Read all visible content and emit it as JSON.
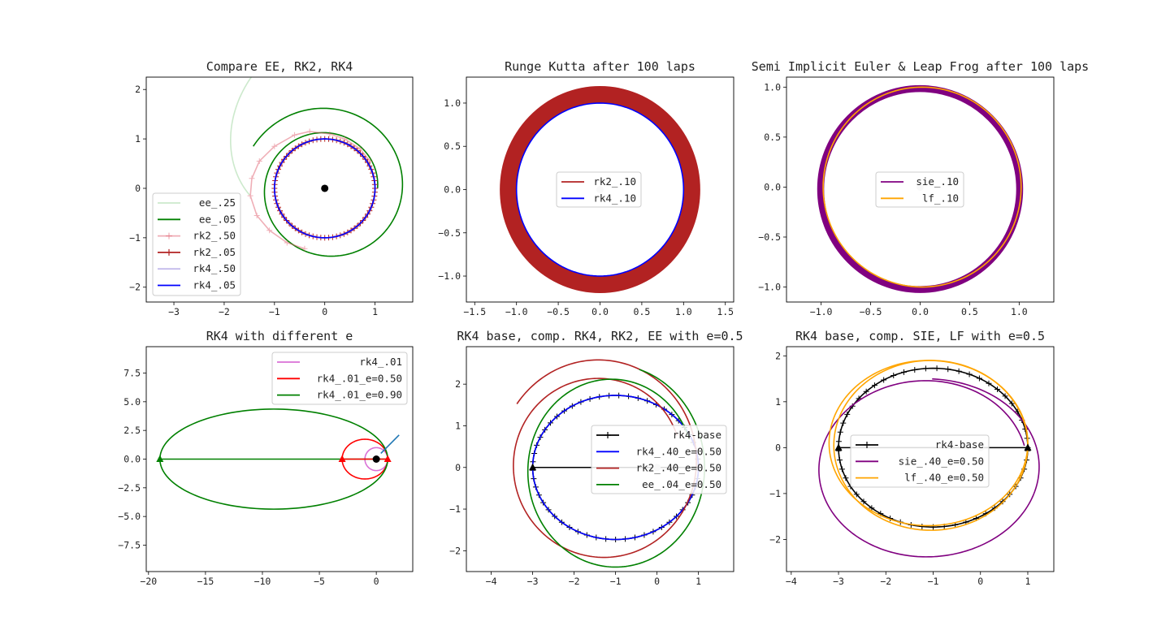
{
  "chart_data": [
    {
      "type": "line",
      "title": "Compare EE, RK2, RK4",
      "xlim": [
        -3.55,
        1.75
      ],
      "ylim": [
        -2.3,
        2.25
      ],
      "xticks": [
        -3,
        -2,
        -1,
        0,
        1
      ],
      "yticks": [
        -2,
        -1,
        0,
        1,
        2
      ],
      "legend_placement": "lower-left",
      "series": [
        {
          "name": "ee_.25",
          "color": "#8fcf8f",
          "alpha": 0.45,
          "marker": "none",
          "kind": "spiral",
          "cx": 0.05,
          "cy": 0,
          "r0": 1.55,
          "r1": 3.45,
          "a0": 185,
          "a1": 85
        },
        {
          "name": "ee_.05",
          "color": "#008000",
          "marker": "none",
          "kind": "spiral",
          "cx": 0.05,
          "cy": 0,
          "r0": 1.0,
          "r1": 1.7,
          "a0": 0,
          "a1": 150,
          "turns": 1
        },
        {
          "name": "rk2_.50",
          "color": "#e06070",
          "alpha": 0.5,
          "marker": "+",
          "kind": "polyline",
          "points": [
            [
              -0.4,
              -1.22
            ],
            [
              -0.75,
              -1.1
            ],
            [
              -1.1,
              -0.85
            ],
            [
              -1.35,
              -0.55
            ],
            [
              -1.48,
              -0.15
            ],
            [
              -1.45,
              0.2
            ],
            [
              -1.3,
              0.55
            ],
            [
              -1.0,
              0.85
            ],
            [
              -0.6,
              1.08
            ],
            [
              -0.3,
              1.15
            ],
            [
              0.1,
              1.1
            ],
            [
              0.4,
              1.0
            ],
            [
              0.7,
              0.8
            ],
            [
              0.9,
              0.55
            ]
          ]
        },
        {
          "name": "rk2_.05",
          "color": "#b22222",
          "marker": "+",
          "kind": "circle",
          "cx": 0,
          "cy": 0,
          "r": 1.0
        },
        {
          "name": "rk4_.50",
          "color": "#9c8fe0",
          "alpha": 0.6,
          "marker": "none",
          "kind": "circle",
          "cx": 0,
          "cy": 0,
          "r": 1.0
        },
        {
          "name": "rk4_.05",
          "color": "#0000ff",
          "marker": "none",
          "kind": "circle",
          "cx": 0,
          "cy": 0,
          "r": 1.0
        }
      ],
      "center_point": [
        0,
        0
      ]
    },
    {
      "type": "line",
      "title": "Runge Kutta after 100 laps",
      "xlim": [
        -1.6,
        1.6
      ],
      "ylim": [
        -1.3,
        1.3
      ],
      "xticks": [
        -1.5,
        -1.0,
        -0.5,
        0.0,
        0.5,
        1.0,
        1.5
      ],
      "yticks": [
        -1.0,
        -0.5,
        0.0,
        0.5,
        1.0
      ],
      "legend_placement": "center",
      "series": [
        {
          "name": "rk2_.10",
          "color": "#b22222",
          "kind": "band",
          "r_in": 1.0,
          "r_out": 1.2
        },
        {
          "name": "rk4_.10",
          "color": "#0000ff",
          "kind": "circle",
          "cx": 0,
          "cy": 0,
          "r": 1.0
        }
      ],
      "center_point": [
        0,
        0
      ]
    },
    {
      "type": "line",
      "title": "Semi Implicit Euler & Leap Frog after 100 laps",
      "xlim": [
        -1.35,
        1.35
      ],
      "ylim": [
        -1.15,
        1.1
      ],
      "xticks": [
        -1.0,
        -0.5,
        0.0,
        0.5,
        1.0
      ],
      "yticks": [
        -1.0,
        -0.5,
        0.0,
        0.5,
        1.0
      ],
      "legend_placement": "center",
      "series": [
        {
          "name": "sie_.10",
          "color": "#800080",
          "kind": "band",
          "r_in": 0.97,
          "r_out": 1.04,
          "cy": -0.02
        },
        {
          "name": "lf_.10",
          "color": "#ffa500",
          "kind": "circle",
          "cx": 0.02,
          "cy": 0,
          "r": 1.0
        }
      ],
      "center_point": [
        0,
        0
      ]
    },
    {
      "type": "line",
      "title": "RK4 with different e",
      "xlim": [
        -20.2,
        3.2
      ],
      "ylim": [
        -9.8,
        9.8
      ],
      "xticks": [
        -20,
        -15,
        -10,
        -5,
        0
      ],
      "yticks": [
        -7.5,
        -5.0,
        -2.5,
        0.0,
        2.5,
        5.0,
        7.5
      ],
      "legend_placement": "upper-right",
      "series": [
        {
          "name": "rk4_.01",
          "color": "#da70d6",
          "kind": "ellipse",
          "cx": 0,
          "cy": 0,
          "rx": 1.0,
          "ry": 1.0
        },
        {
          "name": "rk4_.01_e=0.50",
          "color": "#ff0000",
          "kind": "ellipse",
          "cx": -1.0,
          "cy": 0,
          "rx": 2.0,
          "ry": 1.73
        },
        {
          "name": "rk4_.01_e=0.90",
          "color": "#008000",
          "kind": "ellipse",
          "cx": -9.0,
          "cy": 0,
          "rx": 10.0,
          "ry": 4.36
        }
      ],
      "extra_lines": [
        {
          "color": "#008000",
          "points": [
            [
              -19,
              0
            ],
            [
              1,
              0
            ]
          ]
        },
        {
          "color": "#ff0000",
          "points": [
            [
              -3,
              0
            ],
            [
              1,
              0
            ]
          ]
        },
        {
          "color": "#1f77b4",
          "points": [
            [
              0.4,
              0.5
            ],
            [
              2.0,
              2.1
            ]
          ]
        }
      ],
      "triangles": [
        {
          "color": "#008000",
          "x": -19,
          "y": 0
        },
        {
          "color": "#ff0000",
          "x": -3,
          "y": 0
        },
        {
          "color": "#ff0000",
          "x": 1,
          "y": 0
        }
      ],
      "center_point": [
        0,
        0
      ]
    },
    {
      "type": "line",
      "title": "RK4 base, comp. RK4, RK2, EE with e=0.5",
      "xlim": [
        -4.6,
        1.85
      ],
      "ylim": [
        -2.5,
        2.9
      ],
      "xticks": [
        -4,
        -3,
        -2,
        -1,
        0,
        1
      ],
      "yticks": [
        -2,
        -1,
        0,
        1,
        2
      ],
      "legend_placement": "center-right",
      "series": [
        {
          "name": "rk4-base",
          "color": "#000000",
          "marker": "+",
          "kind": "ellipse",
          "cx": -1.0,
          "cy": 0,
          "rx": 2.0,
          "ry": 1.73
        },
        {
          "name": "rk4_.40_e=0.50",
          "color": "#0000ff",
          "kind": "ellipse",
          "cx": -1.0,
          "cy": 0,
          "rx": 2.0,
          "ry": 1.73
        },
        {
          "name": "rk2_.40_e=0.50",
          "color": "#b22222",
          "kind": "spiral-ellipse",
          "cx": -1.35,
          "cy": 0.1,
          "rx0": 1.95,
          "rx1": 2.45,
          "ry0": 1.95,
          "ry1": 2.55,
          "turns": 1.35,
          "a0": 20
        },
        {
          "name": "ee_.04_e=0.50",
          "color": "#008000",
          "kind": "spiral-ellipse",
          "cx": -1.05,
          "cy": -0.05,
          "rx0": 1.95,
          "rx1": 2.25,
          "ry0": 2.1,
          "ry1": 2.5,
          "turns": 1.15,
          "a0": 20
        }
      ],
      "extra_lines": [
        {
          "color": "#000000",
          "points": [
            [
              -3,
              0
            ],
            [
              1,
              0
            ]
          ]
        }
      ],
      "triangles": [
        {
          "color": "#000000",
          "x": -3,
          "y": 0
        }
      ],
      "center_point": [
        0,
        0
      ]
    },
    {
      "type": "line",
      "title": "RK4 base, comp. SIE, LF with e=0.5",
      "xlim": [
        -4.1,
        1.55
      ],
      "ylim": [
        -2.7,
        2.2
      ],
      "xticks": [
        -4,
        -3,
        -2,
        -1,
        0,
        1
      ],
      "yticks": [
        -2,
        -1,
        0,
        1,
        2
      ],
      "legend_placement": "center",
      "series": [
        {
          "name": "rk4-base",
          "color": "#000000",
          "marker": "+",
          "kind": "ellipse",
          "cx": -1.0,
          "cy": 0,
          "rx": 2.0,
          "ry": 1.73
        },
        {
          "name": "sie_.40_e=0.50",
          "color": "#800080",
          "kind": "spiral-ellipse",
          "cx": -1.15,
          "cy": -0.45,
          "rx0": 2.15,
          "rx1": 2.45,
          "ry0": 1.9,
          "ry1": 1.95,
          "turns": 1.2,
          "a0": 15
        },
        {
          "name": "lf_.40_e=0.50",
          "color": "#ffa500",
          "kind": "multi-ellipse",
          "ellipses": [
            {
              "cx": -1.05,
              "cy": 0.05,
              "rx": 2.05,
              "ry": 1.85
            },
            {
              "cx": -1.1,
              "cy": 0.1,
              "rx": 2.1,
              "ry": 1.8
            }
          ]
        }
      ],
      "extra_lines": [
        {
          "color": "#000000",
          "points": [
            [
              -3,
              0
            ],
            [
              1,
              0
            ]
          ]
        }
      ],
      "triangles": [
        {
          "color": "#000000",
          "x": -3,
          "y": 0
        },
        {
          "color": "#000000",
          "x": 1,
          "y": 0
        }
      ],
      "center_point": [
        0,
        0
      ]
    }
  ]
}
